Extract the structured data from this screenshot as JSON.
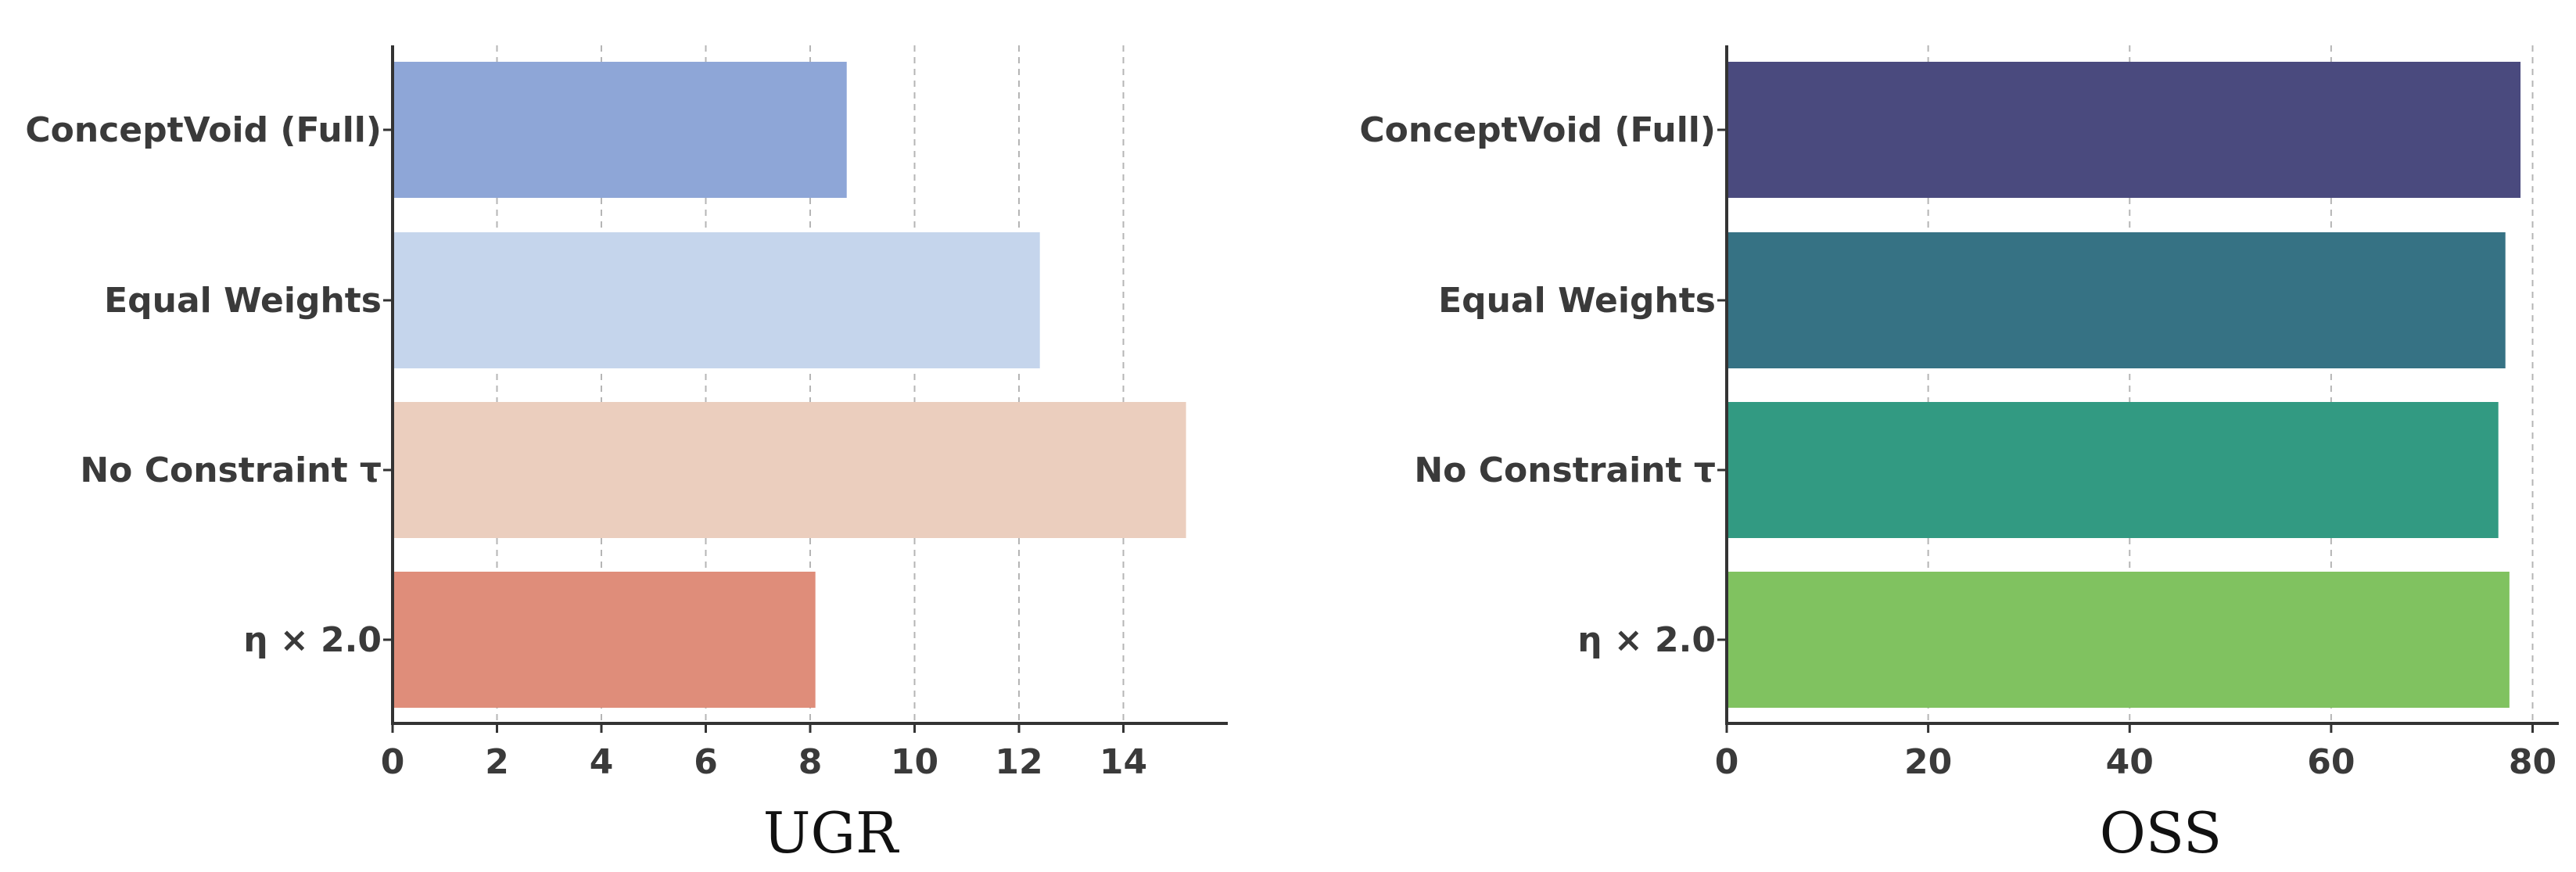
{
  "chart_data": [
    {
      "type": "bar",
      "orientation": "horizontal",
      "categories": [
        "ConceptVoid (Full)",
        "Equal Weights",
        "No Constraint τ",
        "η × 2.0"
      ],
      "values": [
        8.7,
        12.4,
        15.2,
        8.1
      ],
      "colors": [
        "#8ea6d7",
        "#c5d5ec",
        "#ebcebe",
        "#df8d7a"
      ],
      "xlabel": "UGR",
      "xlim": [
        0,
        16
      ],
      "xticks": [
        0,
        2,
        4,
        6,
        8,
        10,
        12,
        14
      ],
      "grid": "x"
    },
    {
      "type": "bar",
      "orientation": "horizontal",
      "categories": [
        "ConceptVoid (Full)",
        "Equal Weights",
        "No Constraint τ",
        "η × 2.0"
      ],
      "values": [
        78.8,
        77.3,
        76.6,
        77.7
      ],
      "colors": [
        "#4a4a7e",
        "#367284",
        "#329a82",
        "#80c260"
      ],
      "xlabel": "OSS",
      "xlim": [
        0,
        82.6
      ],
      "xticks": [
        0,
        20,
        40,
        60,
        80
      ],
      "grid": "x"
    }
  ]
}
